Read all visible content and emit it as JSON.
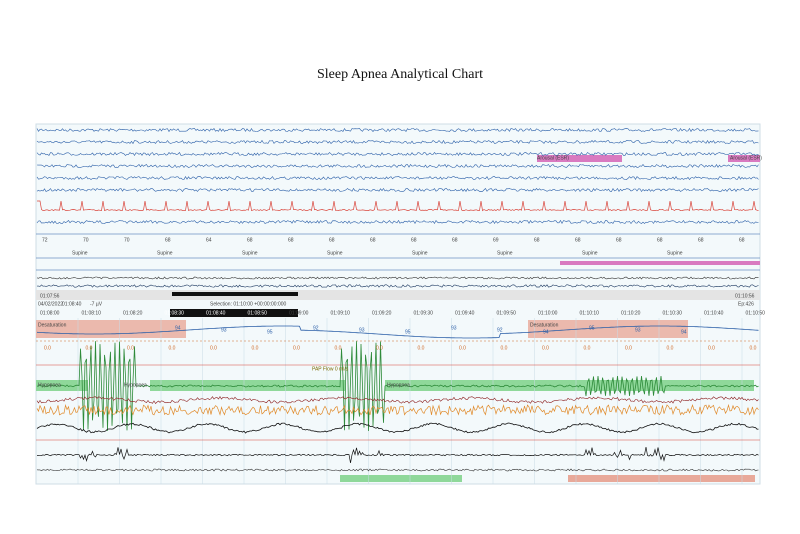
{
  "title": "Sleep Apnea Analytical Chart",
  "heart_rates": [
    "72",
    "70",
    "70",
    "68",
    "64",
    "68",
    "68",
    "68",
    "68",
    "68",
    "68",
    "69",
    "68",
    "68",
    "68",
    "68",
    "68",
    "68"
  ],
  "positions": [
    "Supine",
    "Supine",
    "Supine",
    "Supine",
    "Supine",
    "Supine",
    "Supine",
    "Supine"
  ],
  "events": {
    "arousal_1": "Arousal (ESR)",
    "arousal_2": "Arousal (ESR)"
  },
  "status": {
    "start": "01:07:56",
    "date": "04/02/2022",
    "cursor": "01:08:40",
    "amplitude": "-7 µV",
    "selection": "Selection: 01:10:00 +00:00:00:000",
    "end": "01:10:56",
    "epoch": "Ep:426"
  },
  "time_labels": [
    "01:08:00",
    "01:08:10",
    "01:08:20",
    "01:08:30",
    "01:08:40",
    "01:08:50",
    "01:09:00",
    "01:09:10",
    "01:09:20",
    "01:09:30",
    "01:09:40",
    "01:09:50",
    "01:10:00",
    "01:10:10",
    "01:10:20",
    "01:10:30",
    "01:10:40",
    "01:10:50"
  ],
  "spo2_labels": [
    "94",
    "93",
    "95",
    "92",
    "93",
    "95",
    "93",
    "92",
    "94",
    "95",
    "93",
    "94"
  ],
  "flow_labels": [
    "0.0",
    "0.0",
    "0.0",
    "0.0",
    "0.0",
    "0.0",
    "0.0",
    "0.0",
    "0.0",
    "0.0",
    "0.0",
    "0.0",
    "0.0",
    "0.0",
    "0.0",
    "0.0",
    "0.0",
    "0.0"
  ],
  "annotations": {
    "desaturation_1": "Desaturation",
    "desaturation_2": "Desaturation",
    "hypopnea_1": "Hypopnea",
    "hypopnea_2": "Hypopnea",
    "hypopnea_3": "Hypopnea",
    "pap_flow": "PAP Flow 0 ml/s"
  }
}
